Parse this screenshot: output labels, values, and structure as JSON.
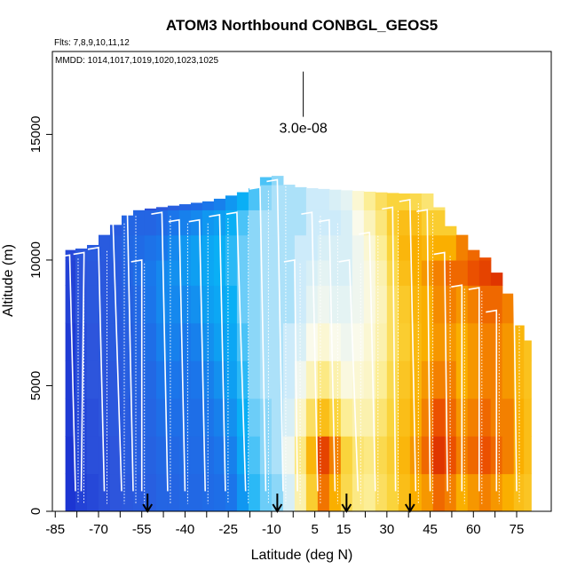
{
  "chart_data": {
    "type": "heatmap",
    "title": "ATOM3 Northbound CONBGL_GEOS5",
    "flights_label": "Flts: 7,8,9,10,11,12",
    "dates_label": "MMDD: 1014,1017,1019,1020,1023,1025",
    "xlabel": "Latitude (deg N)",
    "ylabel": "Altitude (m)",
    "xlim": [
      -86,
      87
    ],
    "ylim": [
      0,
      18300
    ],
    "x_ticks": [
      "-85",
      "-70",
      "-55",
      "-40",
      "-25",
      "-10",
      "5",
      "15",
      "30",
      "45",
      "60",
      "75"
    ],
    "x_tick_values": [
      -85,
      -70,
      -55,
      -40,
      -25,
      -10,
      5,
      15,
      30,
      45,
      60,
      75
    ],
    "y_ticks": [
      "0",
      "5000",
      "10000",
      "15000"
    ],
    "y_tick_values": [
      0,
      5000,
      10000,
      15000
    ],
    "scale_bar_label": "3.0e-08",
    "scale_bar_x": 1,
    "scale_bar_y": [
      15700,
      17500
    ],
    "arrow_latitudes": [
      -53,
      -8,
      16,
      38
    ],
    "altitude_ceiling": [
      [
        -80,
        10400
      ],
      [
        -73,
        10500
      ],
      [
        -67,
        11100
      ],
      [
        -62,
        11600
      ],
      [
        -58,
        11950
      ],
      [
        -52,
        12050
      ],
      [
        -45,
        12150
      ],
      [
        -38,
        12250
      ],
      [
        -31,
        12350
      ],
      [
        -26,
        12500
      ],
      [
        -20,
        12700
      ],
      [
        -15,
        12900
      ],
      [
        -12,
        13300
      ],
      [
        -8,
        13350
      ],
      [
        -4,
        13000
      ],
      [
        0,
        12900
      ],
      [
        5,
        12850
      ],
      [
        12,
        12800
      ],
      [
        20,
        12750
      ],
      [
        27,
        12700
      ],
      [
        35,
        12650
      ],
      [
        44,
        12650
      ],
      [
        48,
        12100
      ],
      [
        52,
        11350
      ],
      [
        56,
        11000
      ],
      [
        60,
        10400
      ],
      [
        64,
        10100
      ],
      [
        68,
        9500
      ],
      [
        71,
        8900
      ],
      [
        74,
        8200
      ],
      [
        77,
        7000
      ],
      [
        79,
        6800
      ]
    ],
    "color_field": [
      {
        "lat": -80,
        "values": [
          0.2,
          0.2,
          0.21,
          0.21,
          0.21,
          0.22,
          0.22,
          0.23,
          0.23,
          0.24,
          0.25,
          0.22
        ]
      },
      {
        "lat": -76,
        "values": [
          0.22,
          0.23,
          0.23,
          0.24,
          0.24,
          0.25,
          0.25,
          0.26,
          0.26,
          0.25,
          0.25,
          0.24
        ]
      },
      {
        "lat": -72,
        "values": [
          0.23,
          0.24,
          0.24,
          0.25,
          0.25,
          0.26,
          0.26,
          0.27,
          0.27,
          0.27,
          0.26,
          0.25
        ]
      },
      {
        "lat": -68,
        "values": [
          0.24,
          0.24,
          0.25,
          0.25,
          0.26,
          0.26,
          0.26,
          0.27,
          0.27,
          0.26,
          0.24,
          0.22
        ]
      },
      {
        "lat": -64,
        "values": [
          0.25,
          0.25,
          0.26,
          0.26,
          0.27,
          0.27,
          0.27,
          0.28,
          0.27,
          0.26,
          0.22,
          0.18
        ]
      },
      {
        "lat": -60,
        "values": [
          0.26,
          0.27,
          0.27,
          0.28,
          0.28,
          0.29,
          0.3,
          0.31,
          0.3,
          0.27,
          0.2,
          0.14
        ]
      },
      {
        "lat": -56,
        "values": [
          0.27,
          0.28,
          0.28,
          0.29,
          0.3,
          0.31,
          0.33,
          0.32,
          0.3,
          0.25,
          0.18,
          0.12
        ]
      },
      {
        "lat": -52,
        "values": [
          0.28,
          0.29,
          0.3,
          0.31,
          0.33,
          0.35,
          0.36,
          0.34,
          0.3,
          0.24,
          0.17,
          0.11
        ]
      },
      {
        "lat": -48,
        "values": [
          0.3,
          0.31,
          0.33,
          0.35,
          0.37,
          0.38,
          0.38,
          0.36,
          0.32,
          0.26,
          0.19,
          0.13
        ]
      },
      {
        "lat": -44,
        "values": [
          0.3,
          0.31,
          0.33,
          0.35,
          0.37,
          0.38,
          0.39,
          0.38,
          0.35,
          0.28,
          0.2,
          0.14
        ]
      },
      {
        "lat": -40,
        "values": [
          0.31,
          0.32,
          0.33,
          0.34,
          0.36,
          0.38,
          0.4,
          0.4,
          0.37,
          0.3,
          0.22,
          0.15
        ]
      },
      {
        "lat": -36,
        "values": [
          0.31,
          0.32,
          0.33,
          0.35,
          0.37,
          0.39,
          0.41,
          0.41,
          0.38,
          0.32,
          0.24,
          0.17
        ]
      },
      {
        "lat": -32,
        "values": [
          0.32,
          0.33,
          0.35,
          0.37,
          0.39,
          0.41,
          0.42,
          0.42,
          0.4,
          0.35,
          0.27,
          0.19
        ]
      },
      {
        "lat": -28,
        "values": [
          0.33,
          0.35,
          0.37,
          0.39,
          0.41,
          0.42,
          0.43,
          0.43,
          0.41,
          0.37,
          0.3,
          0.22
        ]
      },
      {
        "lat": -24,
        "values": [
          0.35,
          0.37,
          0.39,
          0.41,
          0.42,
          0.43,
          0.44,
          0.44,
          0.43,
          0.4,
          0.33,
          0.25
        ]
      },
      {
        "lat": -20,
        "values": [
          0.4,
          0.42,
          0.43,
          0.44,
          0.45,
          0.46,
          0.46,
          0.46,
          0.45,
          0.43,
          0.38,
          0.3
        ]
      },
      {
        "lat": -16,
        "values": [
          0.44,
          0.45,
          0.46,
          0.47,
          0.47,
          0.47,
          0.47,
          0.47,
          0.47,
          0.45,
          0.42,
          0.36
        ]
      },
      {
        "lat": -12,
        "values": [
          0.46,
          0.47,
          0.47,
          0.48,
          0.48,
          0.48,
          0.48,
          0.48,
          0.48,
          0.47,
          0.45,
          0.4
        ]
      },
      {
        "lat": -8,
        "values": [
          0.47,
          0.48,
          0.48,
          0.48,
          0.48,
          0.48,
          0.48,
          0.48,
          0.48,
          0.48,
          0.47,
          0.44
        ]
      },
      {
        "lat": -4,
        "values": [
          0.5,
          0.52,
          0.5,
          0.49,
          0.49,
          0.48,
          0.48,
          0.48,
          0.48,
          0.48,
          0.47,
          0.45
        ]
      },
      {
        "lat": 0,
        "values": [
          0.58,
          0.62,
          0.56,
          0.52,
          0.5,
          0.49,
          0.49,
          0.49,
          0.48,
          0.48,
          0.48,
          0.46
        ]
      },
      {
        "lat": 4,
        "values": [
          0.72,
          0.78,
          0.66,
          0.57,
          0.53,
          0.51,
          0.5,
          0.49,
          0.49,
          0.49,
          0.48,
          0.47
        ]
      },
      {
        "lat": 8,
        "values": [
          0.85,
          0.9,
          0.76,
          0.62,
          0.55,
          0.52,
          0.51,
          0.5,
          0.49,
          0.49,
          0.49,
          0.48
        ]
      },
      {
        "lat": 12,
        "values": [
          0.8,
          0.84,
          0.7,
          0.58,
          0.53,
          0.51,
          0.5,
          0.5,
          0.49,
          0.5,
          0.5,
          0.49
        ]
      },
      {
        "lat": 16,
        "values": [
          0.68,
          0.7,
          0.6,
          0.54,
          0.52,
          0.51,
          0.5,
          0.5,
          0.5,
          0.51,
          0.52,
          0.5
        ]
      },
      {
        "lat": 20,
        "values": [
          0.62,
          0.64,
          0.58,
          0.55,
          0.53,
          0.52,
          0.52,
          0.52,
          0.53,
          0.55,
          0.56,
          0.52
        ]
      },
      {
        "lat": 24,
        "values": [
          0.6,
          0.62,
          0.58,
          0.56,
          0.55,
          0.54,
          0.54,
          0.55,
          0.57,
          0.6,
          0.62,
          0.56
        ]
      },
      {
        "lat": 28,
        "values": [
          0.66,
          0.68,
          0.64,
          0.6,
          0.58,
          0.57,
          0.58,
          0.6,
          0.63,
          0.66,
          0.66,
          0.6
        ]
      },
      {
        "lat": 32,
        "values": [
          0.7,
          0.72,
          0.7,
          0.68,
          0.66,
          0.66,
          0.68,
          0.7,
          0.72,
          0.7,
          0.66,
          0.58
        ]
      },
      {
        "lat": 36,
        "values": [
          0.76,
          0.78,
          0.76,
          0.74,
          0.72,
          0.73,
          0.76,
          0.78,
          0.76,
          0.7,
          0.62,
          0.54
        ]
      },
      {
        "lat": 40,
        "values": [
          0.8,
          0.82,
          0.8,
          0.78,
          0.77,
          0.78,
          0.8,
          0.8,
          0.76,
          0.68,
          0.6,
          0.54
        ]
      },
      {
        "lat": 44,
        "values": [
          0.82,
          0.86,
          0.84,
          0.82,
          0.8,
          0.8,
          0.82,
          0.78,
          0.72,
          0.64,
          0.58,
          0.54
        ]
      },
      {
        "lat": 48,
        "values": [
          0.86,
          0.92,
          0.88,
          0.84,
          0.82,
          0.83,
          0.84,
          0.8,
          0.72,
          0.65,
          0.6,
          0.55
        ]
      },
      {
        "lat": 52,
        "values": [
          0.84,
          0.88,
          0.86,
          0.84,
          0.82,
          0.84,
          0.86,
          0.8,
          0.72,
          0.66,
          0.62,
          0.58
        ]
      },
      {
        "lat": 56,
        "values": [
          0.8,
          0.84,
          0.82,
          0.8,
          0.8,
          0.82,
          0.86,
          0.84,
          0.74,
          0.68,
          0.64,
          0.6
        ]
      },
      {
        "lat": 60,
        "values": [
          0.82,
          0.86,
          0.84,
          0.82,
          0.82,
          0.84,
          0.88,
          0.86,
          0.78,
          0.7,
          0.66,
          0.62
        ]
      },
      {
        "lat": 64,
        "values": [
          0.84,
          0.88,
          0.86,
          0.84,
          0.84,
          0.86,
          0.9,
          0.88,
          0.8,
          0.72,
          0.68,
          0.64
        ]
      },
      {
        "lat": 68,
        "values": [
          0.82,
          0.86,
          0.84,
          0.84,
          0.84,
          0.86,
          0.92,
          0.9,
          0.8,
          0.72,
          0.68,
          0.64
        ]
      },
      {
        "lat": 72,
        "values": [
          0.8,
          0.84,
          0.84,
          0.82,
          0.82,
          0.84,
          0.88,
          0.84,
          0.76,
          0.7,
          0.66,
          0.62
        ]
      },
      {
        "lat": 76,
        "values": [
          0.76,
          0.8,
          0.8,
          0.78,
          0.78,
          0.8,
          0.82,
          0.78,
          0.72,
          0.68,
          0.64,
          0.6
        ]
      },
      {
        "lat": 79,
        "values": [
          0.74,
          0.76,
          0.76,
          0.75,
          0.75,
          0.76,
          0.78,
          0.74,
          0.7,
          0.66,
          0.62,
          0.58
        ]
      }
    ],
    "color_field_altitudes": [
      0,
      1500,
      3000,
      4500,
      6000,
      7500,
      9000,
      10000,
      11000,
      12000,
      13000,
      14000
    ],
    "profiles": [
      {
        "lat_top": -80,
        "lat_bottom": -78,
        "top": 10200
      },
      {
        "lat_top": -75,
        "lat_bottom": -76,
        "top": 10300
      },
      {
        "lat_top": -70,
        "lat_bottom": -68,
        "top": 10500
      },
      {
        "lat_top": -65,
        "lat_bottom": -62,
        "top": 11600
      },
      {
        "lat_top": -60,
        "lat_bottom": -58,
        "top": 11900
      },
      {
        "lat_top": -55,
        "lat_bottom": -55,
        "top": 10000
      },
      {
        "lat_top": -48,
        "lat_bottom": -46,
        "top": 11900
      },
      {
        "lat_top": -42,
        "lat_bottom": -40,
        "top": 11600
      },
      {
        "lat_top": -35,
        "lat_bottom": -33,
        "top": 11600
      },
      {
        "lat_top": -28,
        "lat_bottom": -26,
        "top": 11800
      },
      {
        "lat_top": -22,
        "lat_bottom": -19,
        "top": 11900
      },
      {
        "lat_top": -14,
        "lat_bottom": -12,
        "top": 12900
      },
      {
        "lat_top": -8,
        "lat_bottom": -6,
        "top": 13200
      },
      {
        "lat_top": -2,
        "lat_bottom": -1,
        "top": 10000
      },
      {
        "lat_top": 4,
        "lat_bottom": 6,
        "top": 11900
      },
      {
        "lat_top": 10,
        "lat_bottom": 12,
        "top": 11600
      },
      {
        "lat_top": 17,
        "lat_bottom": 20,
        "top": 10000
      },
      {
        "lat_top": 24,
        "lat_bottom": 26,
        "top": 11100
      },
      {
        "lat_top": 32,
        "lat_bottom": 33,
        "top": 12100
      },
      {
        "lat_top": 38,
        "lat_bottom": 40,
        "top": 12400
      },
      {
        "lat_top": 44,
        "lat_bottom": 45,
        "top": 12000
      },
      {
        "lat_top": 50,
        "lat_bottom": 51,
        "top": 10300
      },
      {
        "lat_top": 56,
        "lat_bottom": 56,
        "top": 9000
      },
      {
        "lat_top": 62,
        "lat_bottom": 62,
        "top": 8900
      },
      {
        "lat_top": 68,
        "lat_bottom": 68,
        "top": 8000
      },
      {
        "lat_top": 74,
        "lat_bottom": 75,
        "top": 9100
      }
    ]
  }
}
